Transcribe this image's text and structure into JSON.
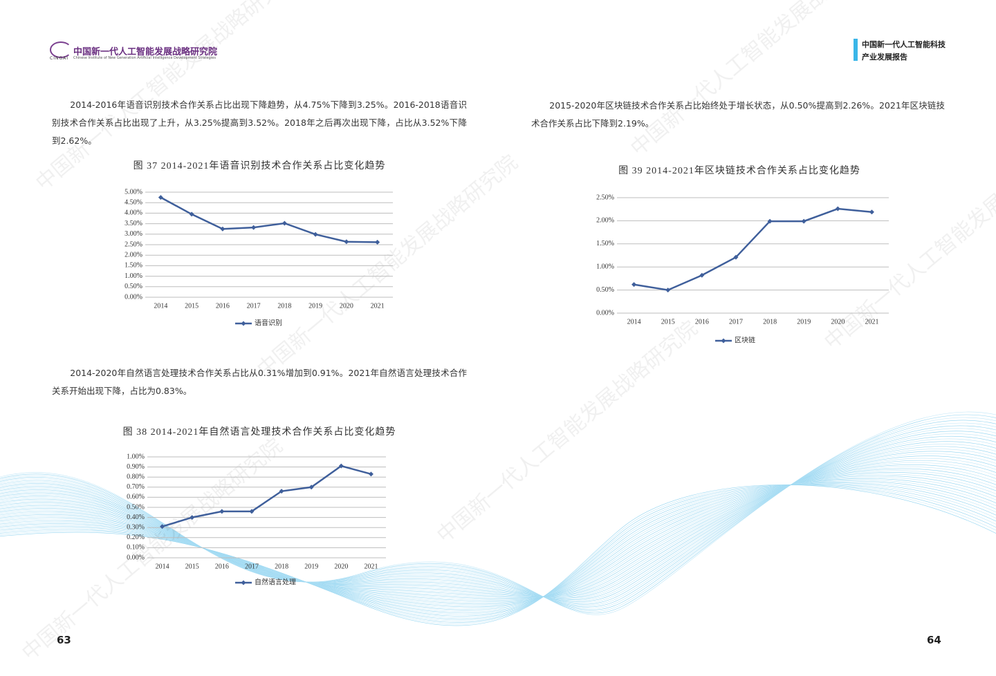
{
  "header": {
    "logo_mark": "CINGAI",
    "logo_title": "中国新一代人工智能发展战略研究院",
    "logo_subtitle": "Chinese Institute of New Generation Artificial Intelligence Development Strategies",
    "right_title_line1": "中国新一代人工智能科技",
    "right_title_line2": "产业发展报告"
  },
  "watermark": "中国新一代人工智能发展战略研究院",
  "paragraphs": [
    "2014-2016年语音识别技术合作关系占比出现下降趋势，从4.75%下降到3.25%。2016-2018语音识别技术合作关系占比出现了上升，从3.25%提高到3.52%。2018年之后再次出现下降，占比从3.52%下降到2.62%。",
    "2014-2020年自然语言处理技术合作关系占比从0.31%增加到0.91%。2021年自然语言处理技术合作关系开始出现下降，占比为0.83%。",
    "2015-2020年区块链技术合作关系占比始终处于增长状态，从0.50%提高到2.26%。2021年区块链技术合作关系占比下降到2.19%。"
  ],
  "page_numbers": [
    "63",
    "64"
  ],
  "chart_data": [
    {
      "type": "line",
      "title": "图 37  2014-2021年语音识别技术合作关系占比变化趋势",
      "categories": [
        "2014",
        "2015",
        "2016",
        "2017",
        "2018",
        "2019",
        "2020",
        "2021"
      ],
      "series": [
        {
          "name": "语音识别",
          "color": "#3f5f9b",
          "values": [
            4.75,
            3.95,
            3.25,
            3.32,
            3.52,
            2.99,
            2.64,
            2.62
          ]
        }
      ],
      "ylim": [
        0,
        5
      ],
      "yticks": [
        {
          "value": 0,
          "label": "0.00%"
        },
        {
          "value": 0.5,
          "label": "0.50%"
        },
        {
          "value": 1,
          "label": "1.00%"
        },
        {
          "value": 1.5,
          "label": "1.50%"
        },
        {
          "value": 2,
          "label": "2.00%"
        },
        {
          "value": 2.5,
          "label": "2.50%"
        },
        {
          "value": 3,
          "label": "3.00%"
        },
        {
          "value": 3.5,
          "label": "3.50%"
        },
        {
          "value": 4,
          "label": "4.00%"
        },
        {
          "value": 4.5,
          "label": "4.50%"
        },
        {
          "value": 5,
          "label": "5.00%"
        }
      ],
      "grid": true
    },
    {
      "type": "line",
      "title": "图 38  2014-2021年自然语言处理技术合作关系占比变化趋势",
      "categories": [
        "2014",
        "2015",
        "2016",
        "2017",
        "2018",
        "2019",
        "2020",
        "2021"
      ],
      "series": [
        {
          "name": "自然语言处理",
          "color": "#3f5f9b",
          "values": [
            0.31,
            0.4,
            0.46,
            0.46,
            0.66,
            0.7,
            0.91,
            0.83
          ]
        }
      ],
      "ylim": [
        0,
        1
      ],
      "yticks": [
        {
          "value": 0,
          "label": "0.00%"
        },
        {
          "value": 0.1,
          "label": "0.10%"
        },
        {
          "value": 0.2,
          "label": "0.20%"
        },
        {
          "value": 0.3,
          "label": "0.30%"
        },
        {
          "value": 0.4,
          "label": "0.40%"
        },
        {
          "value": 0.5,
          "label": "0.50%"
        },
        {
          "value": 0.6,
          "label": "0.60%"
        },
        {
          "value": 0.7,
          "label": "0.70%"
        },
        {
          "value": 0.8,
          "label": "0.80%"
        },
        {
          "value": 0.9,
          "label": "0.90%"
        },
        {
          "value": 1,
          "label": "1.00%"
        }
      ],
      "grid": true
    },
    {
      "type": "line",
      "title": "图 39  2014-2021年区块链技术合作关系占比变化趋势",
      "categories": [
        "2014",
        "2015",
        "2016",
        "2017",
        "2018",
        "2019",
        "2020",
        "2021"
      ],
      "series": [
        {
          "name": "区块链",
          "color": "#3f5f9b",
          "values": [
            0.62,
            0.5,
            0.82,
            1.21,
            1.99,
            1.99,
            2.26,
            2.19
          ]
        }
      ],
      "ylim": [
        0,
        2.5
      ],
      "yticks": [
        {
          "value": 0,
          "label": "0.00%"
        },
        {
          "value": 0.5,
          "label": "0.50%"
        },
        {
          "value": 1,
          "label": "1.00%"
        },
        {
          "value": 1.5,
          "label": "1.50%"
        },
        {
          "value": 2,
          "label": "2.00%"
        },
        {
          "value": 2.5,
          "label": "2.50%"
        }
      ],
      "grid": true
    }
  ]
}
